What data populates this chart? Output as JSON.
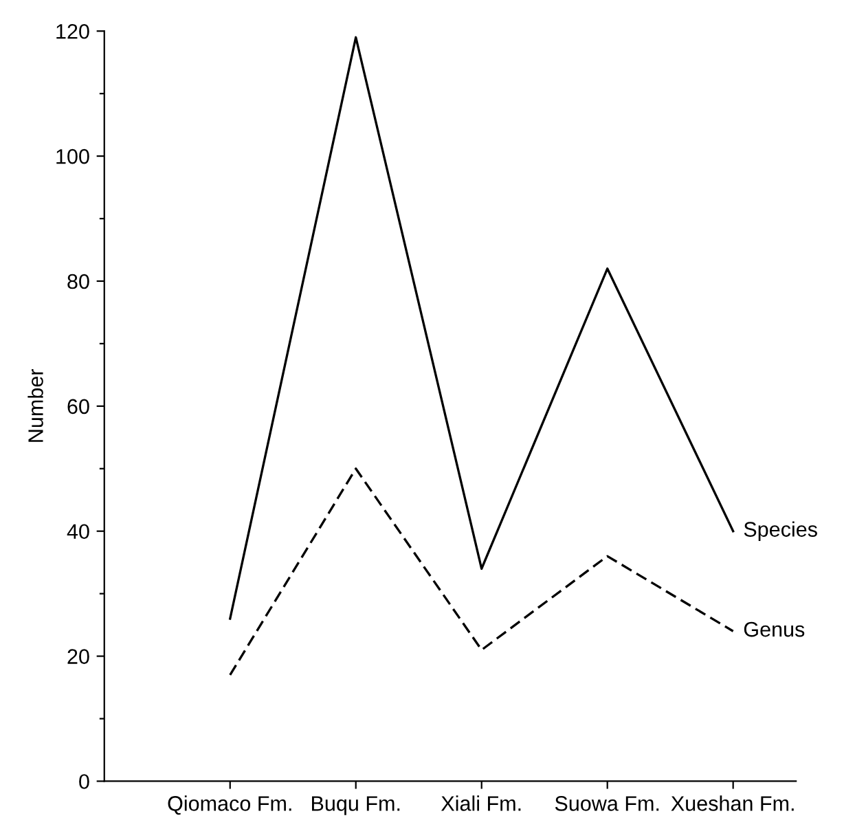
{
  "chart_data": {
    "type": "line",
    "ylabel": "Number",
    "categories": [
      "Qiomaco Fm.",
      "Buqu Fm.",
      "Xiali Fm.",
      "Suowa Fm.",
      "Xueshan Fm."
    ],
    "series": [
      {
        "name": "Species",
        "color": "#000000",
        "line_style": "solid",
        "values": [
          26,
          119,
          34,
          82,
          40
        ]
      },
      {
        "name": "Genus",
        "color": "#000000",
        "line_style": "dashed",
        "values": [
          17,
          50,
          21,
          36,
          24
        ]
      }
    ],
    "ylim": [
      0,
      120
    ],
    "yticks": [
      0,
      {
        "value": 10,
        "label": null
      },
      20,
      {
        "value": 30,
        "label": null
      },
      40,
      {
        "value": 50,
        "label": null
      },
      60,
      {
        "value": 70,
        "label": null
      },
      80,
      {
        "value": 90,
        "label": null
      },
      100,
      {
        "value": 110,
        "label": null
      },
      120
    ],
    "grid": false,
    "legend": false,
    "marker": "none"
  }
}
